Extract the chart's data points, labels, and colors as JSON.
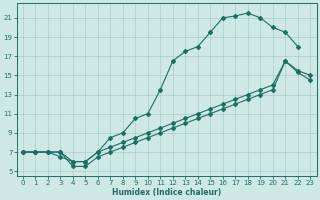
{
  "xlabel": "Humidex (Indice chaleur)",
  "bg_color": "#cde8e5",
  "line_color": "#1e6e66",
  "grid_color": "#a8cecc",
  "xlim": [
    -0.5,
    23.5
  ],
  "ylim": [
    4.5,
    22.5
  ],
  "xticks": [
    0,
    1,
    2,
    3,
    4,
    5,
    6,
    7,
    8,
    9,
    10,
    11,
    12,
    13,
    14,
    15,
    16,
    17,
    18,
    19,
    20,
    21,
    22,
    23
  ],
  "yticks": [
    5,
    7,
    9,
    11,
    13,
    15,
    17,
    19,
    21
  ],
  "line1": {
    "x": [
      0,
      1,
      2,
      3,
      4,
      5,
      6,
      7,
      8,
      9,
      10,
      11,
      12,
      13,
      14,
      15,
      16,
      17,
      18,
      19,
      20,
      21,
      22
    ],
    "y": [
      7,
      7,
      7,
      6.5,
      6,
      6,
      7,
      8.5,
      9,
      10.5,
      11,
      13.5,
      16.5,
      17.5,
      18,
      19.5,
      21,
      21.2,
      21.5,
      21,
      20,
      19.5,
      18
    ]
  },
  "line2": {
    "x": [
      0,
      1,
      2,
      3,
      4,
      5,
      6,
      7,
      8,
      9,
      10,
      11,
      12,
      13,
      14,
      15,
      16,
      17,
      18,
      19,
      20,
      21,
      22,
      23
    ],
    "y": [
      7,
      7,
      7,
      7,
      6,
      6,
      7,
      7.5,
      8,
      8.5,
      9,
      9.5,
      10,
      10.5,
      11,
      11.5,
      12,
      12.5,
      13,
      13.5,
      14,
      16.5,
      15.5,
      15
    ]
  },
  "line3": {
    "x": [
      0,
      1,
      2,
      3,
      4,
      5,
      6,
      7,
      8,
      9,
      10,
      11,
      12,
      13,
      14,
      15,
      16,
      17,
      18,
      19,
      20,
      21,
      22,
      23
    ],
    "y": [
      7,
      7,
      7,
      7,
      5.5,
      5.5,
      6.5,
      7,
      7.5,
      8,
      8.5,
      9,
      9.5,
      10,
      10.5,
      11,
      11.5,
      12,
      12.5,
      13,
      13.5,
      16.5,
      15.3,
      14.5
    ]
  }
}
